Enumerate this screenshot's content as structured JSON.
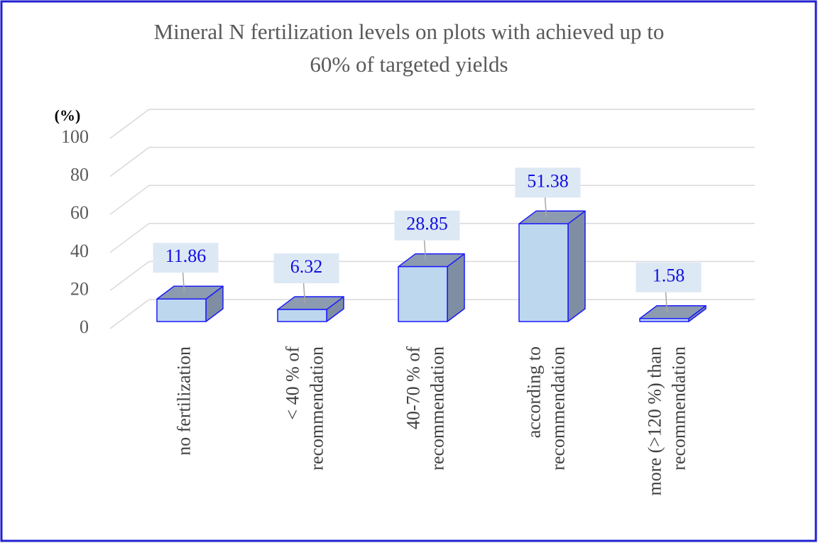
{
  "chart_data": {
    "type": "bar3d",
    "title": [
      "Mineral N fertilization  levels  on plots with achieved up to",
      "60% of targeted  yields"
    ],
    "y_label": "(%)",
    "categories": [
      [
        "no fertilization"
      ],
      [
        "< 40 % of",
        "recommendation"
      ],
      [
        "40-70 % of",
        "recommendation"
      ],
      [
        "according to",
        "recommendation"
      ],
      [
        "more (>120 %) than",
        "recommendation"
      ]
    ],
    "values": [
      11.86,
      6.32,
      28.85,
      51.38,
      1.58
    ],
    "color": "#bdd7ee",
    "edge_color": "#1a1aff",
    "ylim": [
      0,
      100
    ],
    "yticks": [
      0,
      20,
      40,
      60,
      80,
      100
    ],
    "grid": true
  }
}
